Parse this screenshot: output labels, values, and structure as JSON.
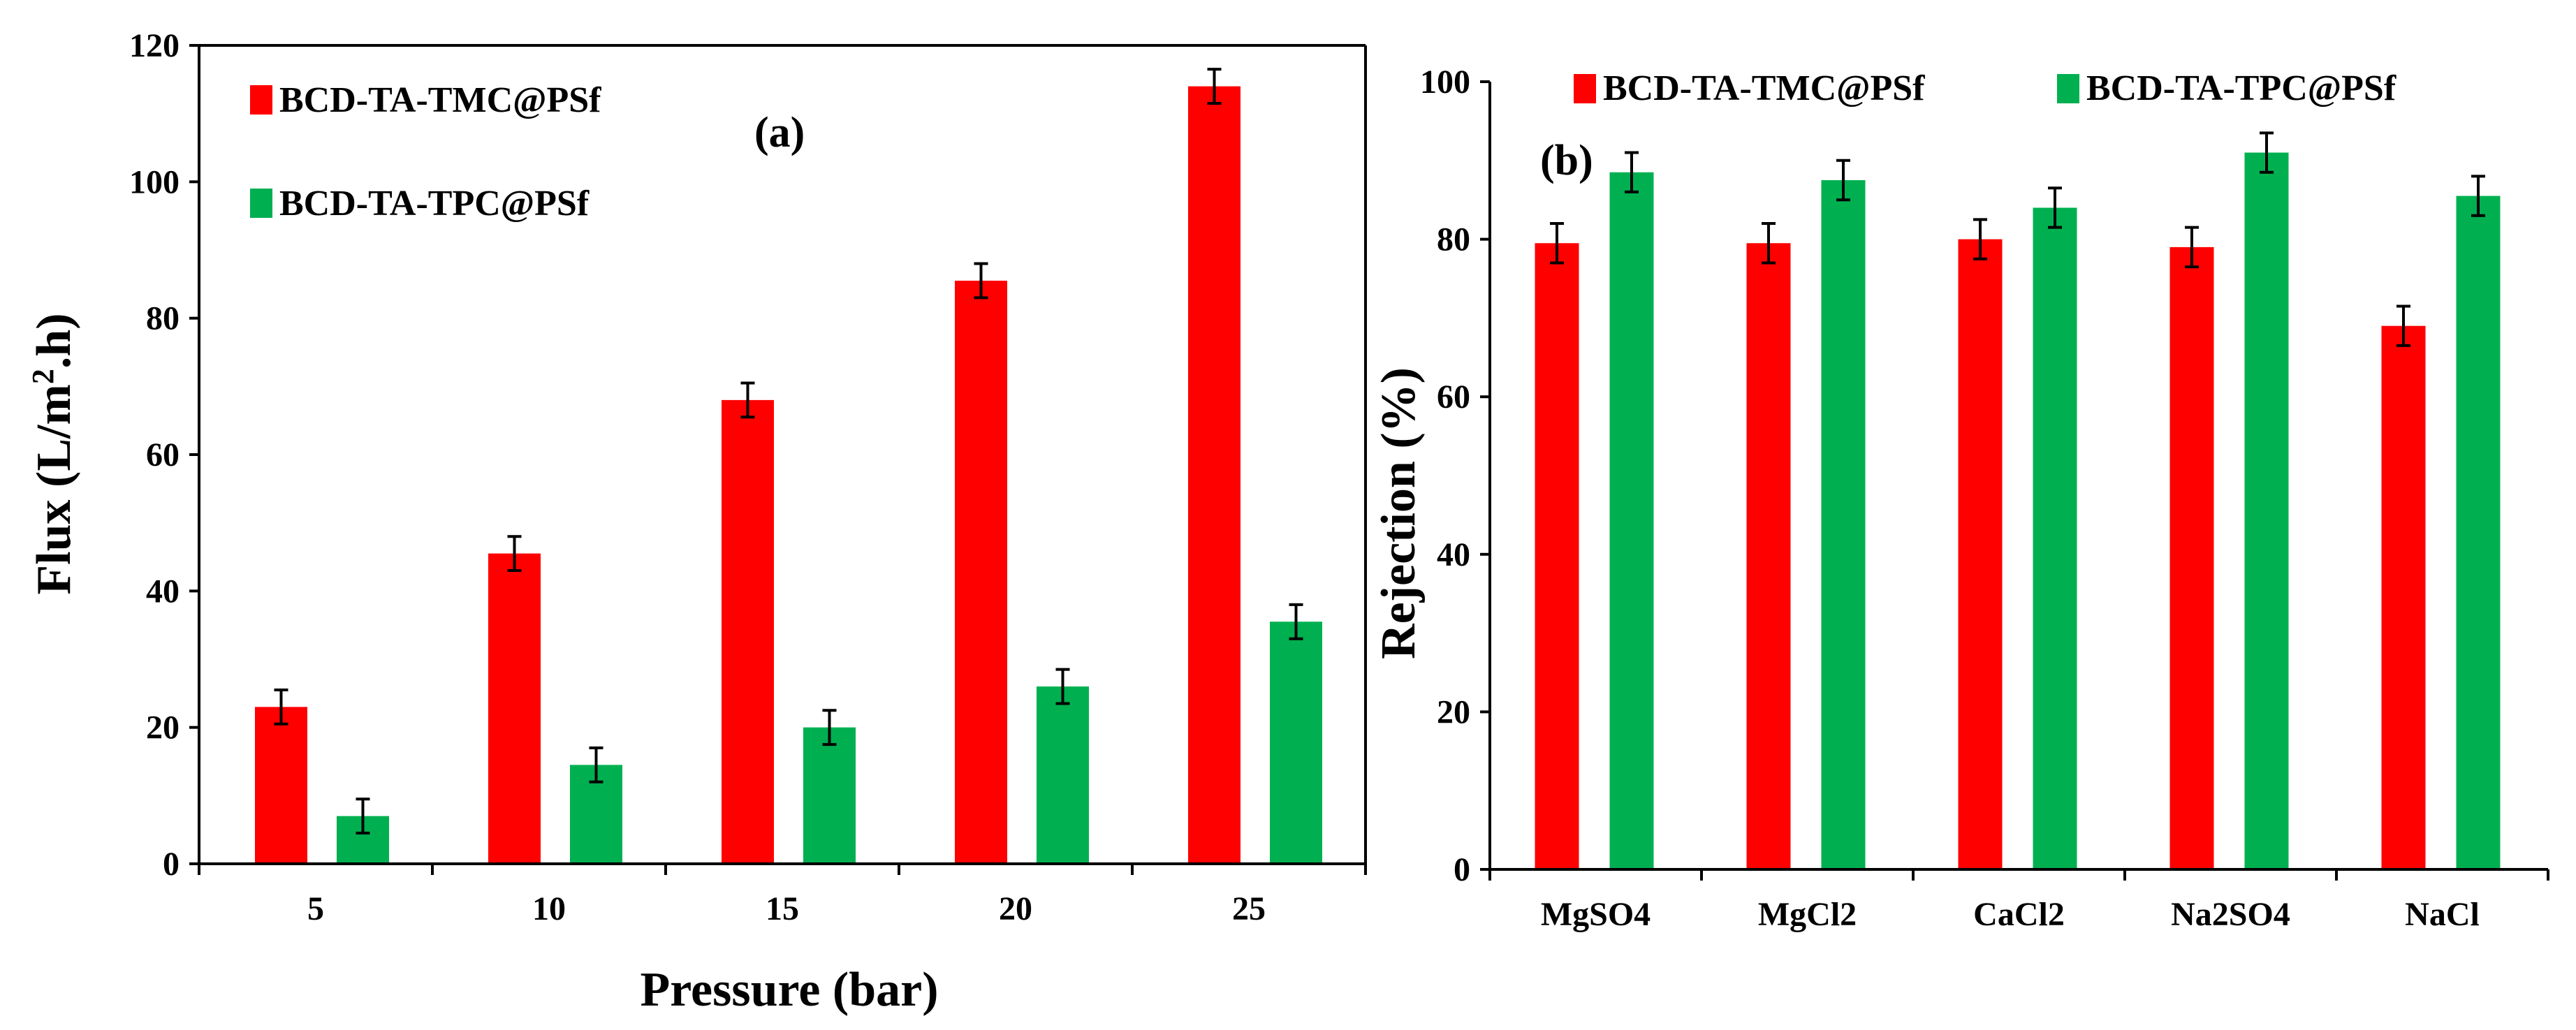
{
  "colors": {
    "series1": "#ff0000",
    "series2": "#00b050",
    "axis": "#000000",
    "errorbar": "#000000"
  },
  "chart_data": [
    {
      "type": "bar",
      "panel_label": "(a)",
      "xlabel": "Pressure (bar)",
      "ylabel": "Flux (L/m².h)",
      "ylim": [
        0,
        120
      ],
      "yticks": [
        0,
        20,
        40,
        60,
        80,
        100,
        120
      ],
      "categories": [
        "5",
        "10",
        "15",
        "20",
        "25"
      ],
      "legend_position": "top-left",
      "grid": false,
      "series": [
        {
          "name": "BCD-TA-TMC@PSf",
          "values": [
            23,
            45.5,
            68,
            85.5,
            114
          ],
          "errors": [
            2.5,
            2.5,
            2.5,
            2.5,
            2.5
          ]
        },
        {
          "name": "BCD-TA-TPC@PSf",
          "values": [
            7,
            14.5,
            20,
            26,
            35.5
          ],
          "errors": [
            2.5,
            2.5,
            2.5,
            2.5,
            2.5
          ]
        }
      ]
    },
    {
      "type": "bar",
      "panel_label": "(b)",
      "xlabel": "",
      "ylabel": "Rejection (%)",
      "ylim": [
        0,
        100
      ],
      "yticks": [
        0,
        20,
        40,
        60,
        80,
        100
      ],
      "categories": [
        "MgSO4",
        "MgCl2",
        "CaCl2",
        "Na2SO4",
        "NaCl"
      ],
      "legend_position": "top",
      "grid": false,
      "series": [
        {
          "name": "BCD-TA-TMC@PSf",
          "values": [
            79.5,
            79.5,
            80,
            79,
            69
          ],
          "errors": [
            2.5,
            2.5,
            2.5,
            2.5,
            2.5
          ]
        },
        {
          "name": "BCD-TA-TPC@PSf",
          "values": [
            88.5,
            87.5,
            84,
            91,
            85.5
          ],
          "errors": [
            2.5,
            2.5,
            2.5,
            2.5,
            2.5
          ]
        }
      ]
    }
  ]
}
